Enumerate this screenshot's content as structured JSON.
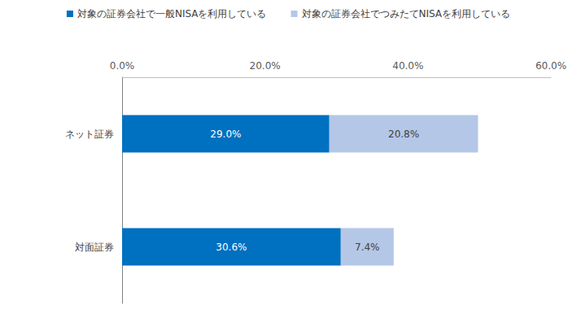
{
  "chart_data": {
    "type": "bar",
    "orientation": "horizontal",
    "stacked": true,
    "data_labels": true,
    "grid": false,
    "legend": "top",
    "categories": [
      "ネット証券",
      "対面証券"
    ],
    "series": [
      {
        "name": "対象の証券会社で一般NISAを利用している",
        "color": "#0070c0",
        "values": [
          29.0,
          30.6
        ],
        "value_labels": [
          "29.0%",
          "30.6%"
        ]
      },
      {
        "name": "対象の証券会社でつみたてNISAを利用している",
        "color": "#b4c7e7",
        "values": [
          20.8,
          7.4
        ],
        "value_labels": [
          "20.8%",
          "7.4%"
        ]
      }
    ],
    "xlim": [
      0,
      60
    ],
    "xticks": [
      {
        "value": 0,
        "label": "0.0%"
      },
      {
        "value": 20,
        "label": "20.0%"
      },
      {
        "value": 40,
        "label": "40.0%"
      },
      {
        "value": 60,
        "label": "60.0%"
      }
    ]
  }
}
